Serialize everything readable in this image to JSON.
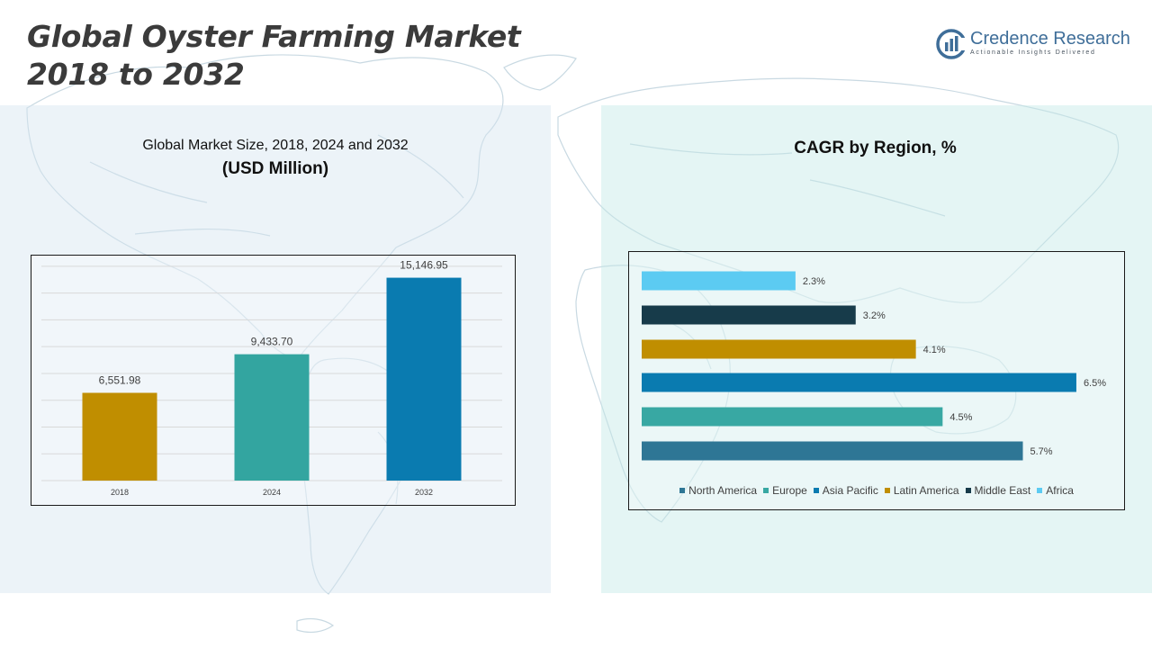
{
  "header": {
    "title_line1": "Global Oyster Farming Market",
    "title_line2": "2018 to 2032"
  },
  "logo": {
    "name": "Credence Research",
    "tagline": "Actionable Insights Delivered"
  },
  "left_panel": {
    "subtitle": "Global Market Size, 2018, 2024 and 2032",
    "unit": "(USD Million)"
  },
  "right_panel": {
    "title": "CAGR by Region, %"
  },
  "colors": {
    "left_panel_bg": "#e3eef6",
    "right_panel_bg": "#dcf3f1",
    "title_text": "#3b3b3b",
    "logo_blue": "#3f6e99"
  },
  "chart_data": [
    {
      "type": "bar",
      "title": "Global Market Size, 2018, 2024 and 2032",
      "ylabel": "(USD Million)",
      "categories": [
        "2018",
        "2024",
        "2032"
      ],
      "values": [
        6551.98,
        9433.7,
        15146.95
      ],
      "value_labels": [
        "6,551.98",
        "9,433.70",
        "15,146.95"
      ],
      "colors": [
        "#c08e00",
        "#33a5a0",
        "#0a7bb0"
      ],
      "ylim": [
        0,
        17000
      ],
      "grid": true,
      "legend": "none"
    },
    {
      "type": "bar",
      "orientation": "horizontal",
      "title": "CAGR by Region, %",
      "categories": [
        "North America",
        "Europe",
        "Asia Pacific",
        "Latin America",
        "Middle East",
        "Africa"
      ],
      "values": [
        5.7,
        4.5,
        6.5,
        4.1,
        3.2,
        2.3
      ],
      "value_labels": [
        "5.7%",
        "4.5%",
        "6.5%",
        "4.1%",
        "3.2%",
        "2.3%"
      ],
      "colors": [
        "#2e7695",
        "#38a8a3",
        "#0a7bb0",
        "#c08e00",
        "#173b4a",
        "#5ccbf2"
      ],
      "xlim": [
        0,
        7
      ],
      "grid": false,
      "legend": "bottom"
    }
  ]
}
